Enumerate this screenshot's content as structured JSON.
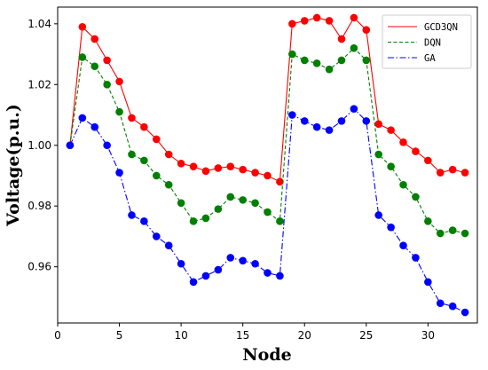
{
  "chart_data": {
    "type": "line",
    "title": "",
    "xlabel": "Node",
    "ylabel": "Voltage(p.u.)",
    "xlim": [
      0,
      34
    ],
    "ylim": [
      0.9415,
      1.0455
    ],
    "xticks": [
      0,
      5,
      10,
      15,
      20,
      25,
      30
    ],
    "xtick_labels": [
      "0",
      "5",
      "10",
      "15",
      "20",
      "25",
      "30"
    ],
    "yticks": [
      0.96,
      0.98,
      1.0,
      1.02,
      1.04
    ],
    "ytick_labels": [
      "0.96",
      "0.98",
      "1.00",
      "1.02",
      "1.04"
    ],
    "grid": false,
    "legend_position": "top-right",
    "x": [
      1,
      2,
      3,
      4,
      5,
      6,
      7,
      8,
      9,
      10,
      11,
      12,
      13,
      14,
      15,
      16,
      17,
      18,
      19,
      20,
      21,
      22,
      23,
      24,
      25,
      26,
      27,
      28,
      29,
      30,
      31,
      32,
      33
    ],
    "series": [
      {
        "name": "GCD3QN",
        "color": "#ff0000",
        "line_style": "solid",
        "values": [
          1.0,
          1.039,
          1.035,
          1.028,
          1.021,
          1.009,
          1.006,
          1.002,
          0.997,
          0.994,
          0.993,
          0.9915,
          0.9925,
          0.993,
          0.992,
          0.991,
          0.99,
          0.988,
          1.04,
          1.041,
          1.042,
          1.041,
          1.035,
          1.042,
          1.038,
          1.007,
          1.005,
          1.001,
          0.998,
          0.995,
          0.991,
          0.992,
          0.991
        ]
      },
      {
        "name": "DQN",
        "color": "#008000",
        "line_style": "dashed",
        "values": [
          1.0,
          1.029,
          1.026,
          1.02,
          1.011,
          0.997,
          0.995,
          0.99,
          0.987,
          0.981,
          0.975,
          0.976,
          0.979,
          0.983,
          0.982,
          0.981,
          0.978,
          0.975,
          1.03,
          1.028,
          1.027,
          1.025,
          1.028,
          1.032,
          1.028,
          0.997,
          0.993,
          0.987,
          0.983,
          0.975,
          0.971,
          0.972,
          0.971
        ]
      },
      {
        "name": "GA",
        "color": "#0000ff",
        "line_style": "dashdot",
        "values": [
          1.0,
          1.009,
          1.006,
          1.0,
          0.991,
          0.977,
          0.975,
          0.97,
          0.967,
          0.961,
          0.955,
          0.957,
          0.959,
          0.963,
          0.962,
          0.961,
          0.958,
          0.957,
          1.01,
          1.008,
          1.006,
          1.005,
          1.008,
          1.012,
          1.008,
          0.977,
          0.973,
          0.967,
          0.963,
          0.955,
          0.948,
          0.947,
          0.945
        ]
      }
    ]
  }
}
